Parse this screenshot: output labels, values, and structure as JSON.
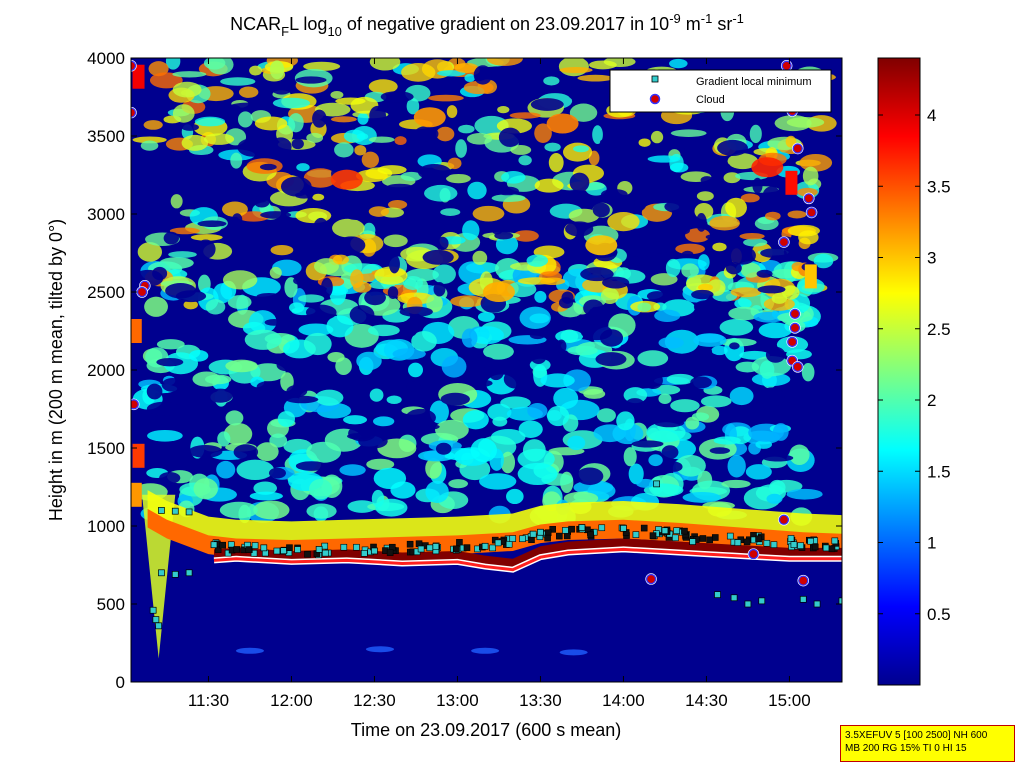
{
  "chart_data": {
    "type": "heatmap",
    "title": {
      "pre": "NCAR",
      "sub1": "F",
      "mid": "L log",
      "sub2": "10",
      "post": " of negative gradient on 23.09.2017 in 10",
      "sup1": "-9",
      "unit1": " m",
      "sup2": "-1",
      "unit2": " sr",
      "sup3": "-1"
    },
    "xlabel": "Time on 23.09.2017 (600 s mean)",
    "ylabel": "Height in m (200 m mean, tilted by 0°)",
    "x_ticks": [
      "11:30",
      "12:00",
      "12:30",
      "13:00",
      "13:30",
      "14:00",
      "14:30",
      "15:00"
    ],
    "x_tick_minutes": [
      690,
      720,
      750,
      780,
      810,
      840,
      870,
      900
    ],
    "xlim_minutes": [
      662,
      919
    ],
    "y_ticks": [
      0,
      500,
      1000,
      1500,
      2000,
      2500,
      3000,
      3500,
      4000
    ],
    "ylim": [
      0,
      4000
    ],
    "colorbar": {
      "ticks": [
        0.5,
        1,
        1.5,
        2,
        2.5,
        3,
        3.5,
        4
      ],
      "range": [
        0,
        4.4
      ],
      "colormap": "jet"
    },
    "legend": {
      "placement": "top-right",
      "entries": [
        {
          "label": "Gradient local minimum",
          "marker": "square",
          "color": "#33cccc"
        },
        {
          "label": "Cloud",
          "marker": "circle",
          "color": "#d00000",
          "edge": "#3333ff"
        }
      ]
    },
    "boundary_layer_top_m": [
      [
        668,
        1050
      ],
      [
        675,
        980
      ],
      [
        690,
        880
      ],
      [
        700,
        860
      ],
      [
        720,
        850
      ],
      [
        740,
        860
      ],
      [
        760,
        870
      ],
      [
        780,
        880
      ],
      [
        800,
        900
      ],
      [
        810,
        950
      ],
      [
        820,
        970
      ],
      [
        840,
        980
      ],
      [
        860,
        960
      ],
      [
        875,
        940
      ],
      [
        890,
        920
      ],
      [
        905,
        900
      ],
      [
        919,
        890
      ]
    ],
    "cloud_base_m": [
      [
        692,
        780
      ],
      [
        700,
        790
      ],
      [
        720,
        770
      ],
      [
        740,
        780
      ],
      [
        760,
        760
      ],
      [
        780,
        770
      ],
      [
        790,
        740
      ],
      [
        800,
        720
      ],
      [
        810,
        800
      ],
      [
        820,
        830
      ],
      [
        840,
        850
      ],
      [
        860,
        830
      ],
      [
        870,
        820
      ],
      [
        880,
        810
      ],
      [
        890,
        800
      ],
      [
        900,
        790
      ],
      [
        919,
        790
      ]
    ],
    "upper_cloud_points_m": [
      [
        662,
        3950
      ],
      [
        662,
        3650
      ],
      [
        667,
        2540
      ],
      [
        666,
        2500
      ],
      [
        663,
        1780
      ],
      [
        899,
        3950
      ],
      [
        901,
        3660
      ],
      [
        903,
        3420
      ],
      [
        898,
        2820
      ],
      [
        907,
        3100
      ],
      [
        908,
        3010
      ],
      [
        902,
        2360
      ],
      [
        902,
        2270
      ],
      [
        901,
        2180
      ],
      [
        901,
        2060
      ],
      [
        903,
        2020
      ],
      [
        898,
        1040
      ],
      [
        905,
        650
      ],
      [
        887,
        820
      ],
      [
        850,
        660
      ]
    ],
    "gradient_min_points_m": [
      [
        673,
        1100
      ],
      [
        678,
        1095
      ],
      [
        683,
        1090
      ],
      [
        673,
        700
      ],
      [
        678,
        690
      ],
      [
        683,
        700
      ],
      [
        670,
        460
      ],
      [
        671,
        400
      ],
      [
        672,
        360
      ],
      [
        692,
        880
      ],
      [
        710,
        860
      ],
      [
        730,
        850
      ],
      [
        750,
        840
      ],
      [
        770,
        860
      ],
      [
        790,
        870
      ],
      [
        810,
        960
      ],
      [
        825,
        990
      ],
      [
        840,
        985
      ],
      [
        855,
        970
      ],
      [
        865,
        900
      ],
      [
        874,
        560
      ],
      [
        880,
        540
      ],
      [
        885,
        500
      ],
      [
        890,
        520
      ],
      [
        905,
        530
      ],
      [
        910,
        500
      ],
      [
        919,
        520
      ],
      [
        852,
        1270
      ]
    ]
  },
  "info_box": {
    "line1": "3.5XEFUV 5 [100 2500] NH 600",
    "line2": "MB 200 RG 15% TI 0 HI 15"
  }
}
